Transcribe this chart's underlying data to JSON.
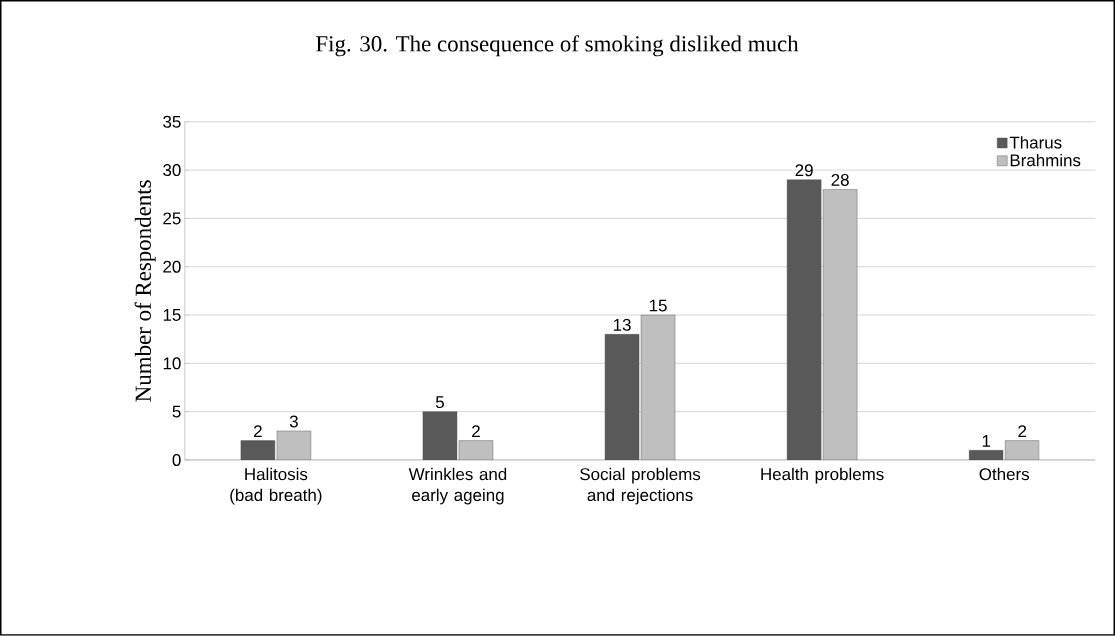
{
  "chart_data": {
    "type": "bar",
    "title": "Fig. 30.   The consequence of smoking disliked much",
    "ylabel": "Number of Respondents",
    "categories": [
      "Halitosis (bad breath)",
      "Wrinkles and early ageing",
      "Social problems and rejections",
      "Health problems",
      "Others"
    ],
    "series": [
      {
        "name": "Tharus",
        "color": "#595959",
        "values": [
          2,
          5,
          13,
          29,
          1
        ]
      },
      {
        "name": "Brahmins",
        "color": "#bfbfbf",
        "values": [
          3,
          2,
          15,
          28,
          2
        ]
      }
    ],
    "ylim": [
      0,
      35
    ],
    "yticks": [
      0,
      5,
      10,
      15,
      20,
      25,
      30,
      35
    ],
    "grid": "y",
    "legend": "top right",
    "data_labels": true
  }
}
